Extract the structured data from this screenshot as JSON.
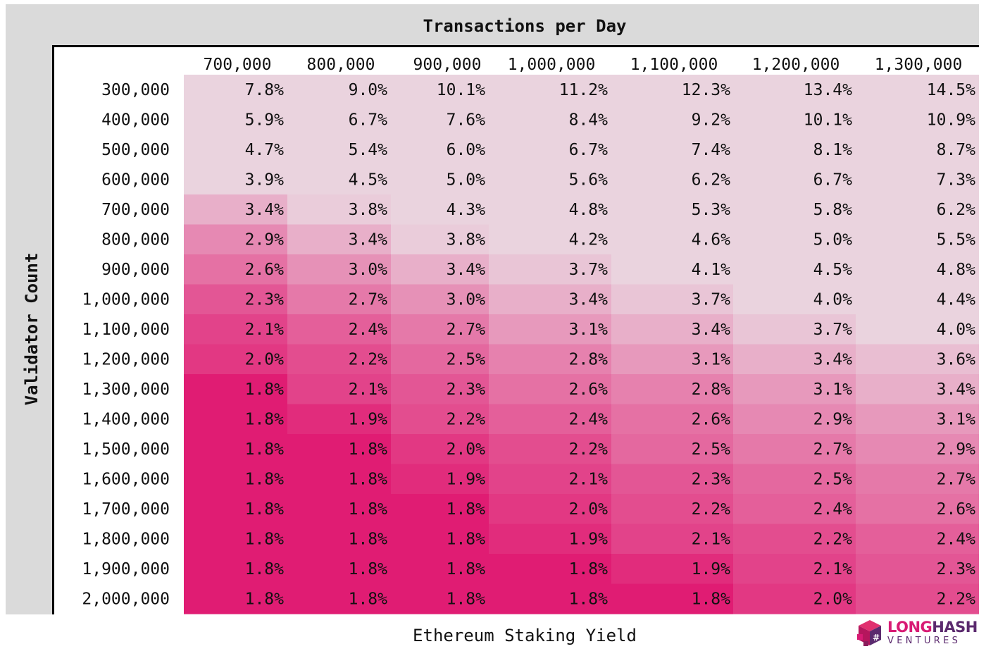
{
  "chart_data": {
    "type": "heatmap",
    "title": "Transactions per Day",
    "xlabel": "Ethereum Staking Yield",
    "ylabel": "Validator Count",
    "x_categories": [
      "700,000",
      "800,000",
      "900,000",
      "1,000,000",
      "1,100,000",
      "1,200,000",
      "1,300,000"
    ],
    "y_categories": [
      "300,000",
      "400,000",
      "500,000",
      "600,000",
      "700,000",
      "800,000",
      "900,000",
      "1,000,000",
      "1,100,000",
      "1,200,000",
      "1,300,000",
      "1,400,000",
      "1,500,000",
      "1,600,000",
      "1,700,000",
      "1,800,000",
      "1,900,000",
      "2,000,000"
    ],
    "values": [
      [
        "7.8%",
        "9.0%",
        "10.1%",
        "11.2%",
        "12.3%",
        "13.4%",
        "14.5%"
      ],
      [
        "5.9%",
        "6.7%",
        "7.6%",
        "8.4%",
        "9.2%",
        "10.1%",
        "10.9%"
      ],
      [
        "4.7%",
        "5.4%",
        "6.0%",
        "6.7%",
        "7.4%",
        "8.1%",
        "8.7%"
      ],
      [
        "3.9%",
        "4.5%",
        "5.0%",
        "5.6%",
        "6.2%",
        "6.7%",
        "7.3%"
      ],
      [
        "3.4%",
        "3.8%",
        "4.3%",
        "4.8%",
        "5.3%",
        "5.8%",
        "6.2%"
      ],
      [
        "2.9%",
        "3.4%",
        "3.8%",
        "4.2%",
        "4.6%",
        "5.0%",
        "5.5%"
      ],
      [
        "2.6%",
        "3.0%",
        "3.4%",
        "3.7%",
        "4.1%",
        "4.5%",
        "4.8%"
      ],
      [
        "2.3%",
        "2.7%",
        "3.0%",
        "3.4%",
        "3.7%",
        "4.0%",
        "4.4%"
      ],
      [
        "2.1%",
        "2.4%",
        "2.7%",
        "3.1%",
        "3.4%",
        "3.7%",
        "4.0%"
      ],
      [
        "2.0%",
        "2.2%",
        "2.5%",
        "2.8%",
        "3.1%",
        "3.4%",
        "3.6%"
      ],
      [
        "1.8%",
        "2.1%",
        "2.3%",
        "2.6%",
        "2.8%",
        "3.1%",
        "3.4%"
      ],
      [
        "1.8%",
        "1.9%",
        "2.2%",
        "2.4%",
        "2.6%",
        "2.9%",
        "3.1%"
      ],
      [
        "1.8%",
        "1.8%",
        "2.0%",
        "2.2%",
        "2.5%",
        "2.7%",
        "2.9%"
      ],
      [
        "1.8%",
        "1.8%",
        "1.9%",
        "2.1%",
        "2.3%",
        "2.5%",
        "2.7%"
      ],
      [
        "1.8%",
        "1.8%",
        "1.8%",
        "2.0%",
        "2.2%",
        "2.4%",
        "2.6%"
      ],
      [
        "1.8%",
        "1.8%",
        "1.8%",
        "1.9%",
        "2.1%",
        "2.2%",
        "2.4%"
      ],
      [
        "1.8%",
        "1.8%",
        "1.8%",
        "1.8%",
        "1.9%",
        "2.1%",
        "2.3%"
      ],
      [
        "1.8%",
        "1.8%",
        "1.8%",
        "1.8%",
        "1.8%",
        "2.0%",
        "2.2%"
      ]
    ],
    "color_scale": {
      "low": "#e01c73",
      "high": "#ead3de",
      "saturate_above": "3.9%"
    },
    "grid": false,
    "legend": "none"
  },
  "colors": {
    "frame_band": "#dadada",
    "axis": "#000000",
    "text": "#111111",
    "accent": "#d81b74"
  },
  "logo": {
    "icon": "cube-hash-icon",
    "word_long": "LONG",
    "word_hash": "HASH",
    "word_ventures": "VENTURES"
  }
}
